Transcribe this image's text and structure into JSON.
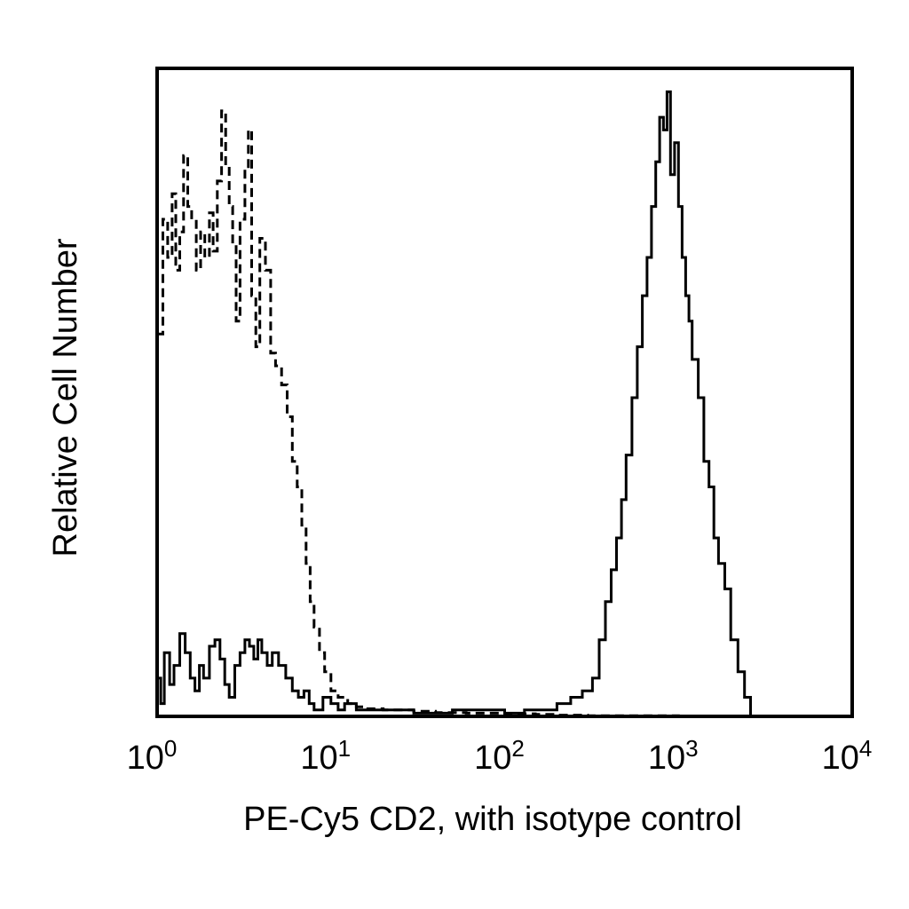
{
  "chart_data": {
    "type": "line",
    "xlabel": "PE-Cy5 CD2, with isotype control",
    "ylabel": "Relative Cell Number",
    "x_scale": "log",
    "xlim": [
      1,
      10000
    ],
    "ylim": [
      0,
      100
    ],
    "x_ticks": [
      {
        "base": "10",
        "exp": "0"
      },
      {
        "base": "10",
        "exp": "1"
      },
      {
        "base": "10",
        "exp": "2"
      },
      {
        "base": "10",
        "exp": "3"
      },
      {
        "base": "10",
        "exp": "4"
      }
    ],
    "grid": false,
    "series": [
      {
        "style": "dashed",
        "points": [
          [
            1.0,
            60
          ],
          [
            1.08,
            78
          ],
          [
            1.15,
            72
          ],
          [
            1.22,
            82
          ],
          [
            1.28,
            70
          ],
          [
            1.35,
            76
          ],
          [
            1.42,
            88
          ],
          [
            1.5,
            80
          ],
          [
            1.58,
            78
          ],
          [
            1.68,
            70
          ],
          [
            1.78,
            76
          ],
          [
            1.88,
            72
          ],
          [
            2.0,
            79
          ],
          [
            2.1,
            73
          ],
          [
            2.22,
            84
          ],
          [
            2.35,
            95
          ],
          [
            2.48,
            86
          ],
          [
            2.6,
            80
          ],
          [
            2.72,
            74
          ],
          [
            2.85,
            62
          ],
          [
            3.0,
            78
          ],
          [
            3.2,
            86
          ],
          [
            3.35,
            92
          ],
          [
            3.5,
            66
          ],
          [
            3.7,
            58
          ],
          [
            3.9,
            75
          ],
          [
            4.2,
            70
          ],
          [
            4.5,
            57
          ],
          [
            4.8,
            55
          ],
          [
            5.2,
            52
          ],
          [
            5.6,
            47
          ],
          [
            6.0,
            40
          ],
          [
            6.4,
            36
          ],
          [
            6.8,
            30
          ],
          [
            7.2,
            24
          ],
          [
            7.6,
            18
          ],
          [
            8.0,
            14
          ],
          [
            8.6,
            10
          ],
          [
            9.2,
            7
          ],
          [
            10.0,
            4
          ],
          [
            11.0,
            3
          ],
          [
            12.5,
            2
          ],
          [
            14.0,
            1.5
          ],
          [
            16.0,
            1.2
          ],
          [
            20.0,
            1
          ],
          [
            30.0,
            0.8
          ],
          [
            40.0,
            0.6
          ],
          [
            60.0,
            0.5
          ],
          [
            100,
            0.4
          ],
          [
            150,
            0.3
          ],
          [
            200,
            0.2
          ],
          [
            300,
            0.1
          ],
          [
            1000,
            0
          ],
          [
            10000,
            0
          ]
        ]
      },
      {
        "style": "solid",
        "points": [
          [
            1.0,
            6
          ],
          [
            1.05,
            2
          ],
          [
            1.1,
            10
          ],
          [
            1.18,
            5
          ],
          [
            1.25,
            8
          ],
          [
            1.35,
            13
          ],
          [
            1.45,
            10
          ],
          [
            1.55,
            6
          ],
          [
            1.65,
            4
          ],
          [
            1.75,
            8
          ],
          [
            1.85,
            6
          ],
          [
            2.0,
            11
          ],
          [
            2.15,
            12
          ],
          [
            2.3,
            9
          ],
          [
            2.45,
            5
          ],
          [
            2.6,
            3
          ],
          [
            2.8,
            8
          ],
          [
            3.0,
            10
          ],
          [
            3.2,
            12
          ],
          [
            3.4,
            11
          ],
          [
            3.6,
            9
          ],
          [
            3.8,
            12
          ],
          [
            4.0,
            10
          ],
          [
            4.3,
            8
          ],
          [
            4.6,
            10
          ],
          [
            5.0,
            8
          ],
          [
            5.5,
            6
          ],
          [
            6.0,
            4
          ],
          [
            6.5,
            3
          ],
          [
            7.0,
            4
          ],
          [
            7.5,
            2
          ],
          [
            8.0,
            1
          ],
          [
            9.0,
            3
          ],
          [
            10.0,
            2
          ],
          [
            11.0,
            1
          ],
          [
            12.0,
            2
          ],
          [
            14.0,
            1
          ],
          [
            16.0,
            1
          ],
          [
            20.0,
            1
          ],
          [
            30.0,
            0.5
          ],
          [
            50.0,
            1
          ],
          [
            80.0,
            1
          ],
          [
            100,
            0.5
          ],
          [
            130,
            1
          ],
          [
            160,
            1
          ],
          [
            200,
            2
          ],
          [
            240,
            3
          ],
          [
            280,
            4
          ],
          [
            320,
            6
          ],
          [
            350,
            12
          ],
          [
            380,
            18
          ],
          [
            410,
            23
          ],
          [
            440,
            28
          ],
          [
            470,
            34
          ],
          [
            500,
            41
          ],
          [
            540,
            50
          ],
          [
            580,
            58
          ],
          [
            620,
            66
          ],
          [
            660,
            72
          ],
          [
            700,
            80
          ],
          [
            740,
            87
          ],
          [
            780,
            94
          ],
          [
            820,
            92
          ],
          [
            860,
            98
          ],
          [
            900,
            85
          ],
          [
            950,
            90
          ],
          [
            1000,
            80
          ],
          [
            1050,
            72
          ],
          [
            1100,
            66
          ],
          [
            1150,
            62
          ],
          [
            1200,
            56
          ],
          [
            1300,
            50
          ],
          [
            1400,
            40
          ],
          [
            1500,
            36
          ],
          [
            1600,
            28
          ],
          [
            1700,
            24
          ],
          [
            1850,
            20
          ],
          [
            2000,
            12
          ],
          [
            2200,
            7
          ],
          [
            2400,
            3
          ],
          [
            2600,
            0
          ],
          [
            10000,
            0
          ]
        ]
      }
    ]
  }
}
